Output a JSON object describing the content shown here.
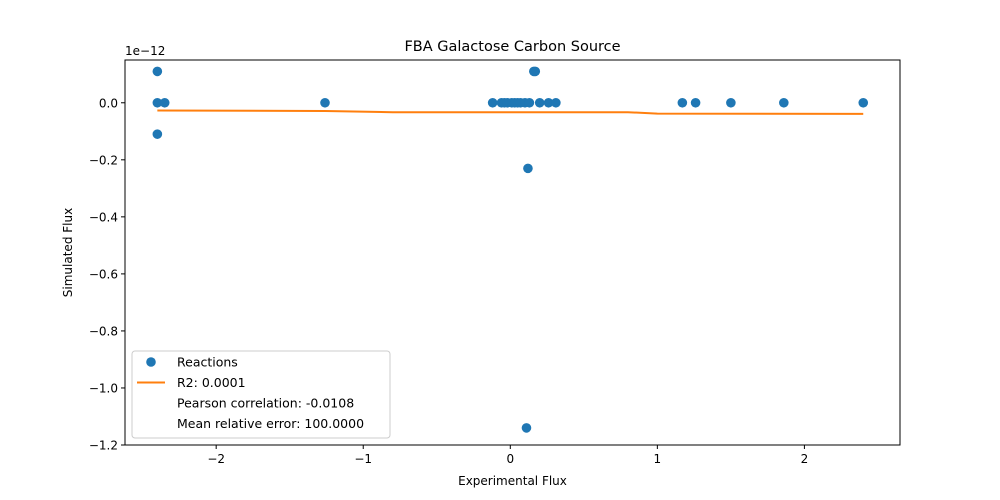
{
  "chart_data": {
    "type": "scatter",
    "title": "FBA Galactose Carbon Source",
    "xlabel": "Experimental Flux",
    "ylabel": "Simulated Flux",
    "y_offset_label": "1e−12",
    "xlim": [
      -2.62,
      2.65
    ],
    "ylim": [
      -1.2,
      0.15
    ],
    "x_ticks": [
      -2,
      -1,
      0,
      1,
      2
    ],
    "x_tick_labels": [
      "−2",
      "−1",
      "0",
      "1",
      "2"
    ],
    "y_ticks": [
      -1.2,
      -1.0,
      -0.8,
      -0.6,
      -0.4,
      -0.2,
      0.0
    ],
    "y_tick_labels": [
      "−1.2",
      "−1.0",
      "−0.8",
      "−0.6",
      "−0.4",
      "−0.2",
      "0.0"
    ],
    "grid": false,
    "legend_position": "lower-left",
    "series": [
      {
        "name": "Reactions",
        "kind": "scatter",
        "color": "#1f77b4",
        "points": [
          [
            -2.4,
            0.11
          ],
          [
            -2.4,
            0.0
          ],
          [
            -2.35,
            0.0
          ],
          [
            -2.4,
            -0.11
          ],
          [
            -1.26,
            0.0
          ],
          [
            -0.12,
            0.0
          ],
          [
            -0.06,
            0.0
          ],
          [
            -0.04,
            0.0
          ],
          [
            -0.02,
            0.0
          ],
          [
            0.01,
            0.0
          ],
          [
            0.03,
            0.0
          ],
          [
            0.05,
            0.0
          ],
          [
            0.07,
            0.0
          ],
          [
            0.1,
            0.0
          ],
          [
            0.13,
            0.0
          ],
          [
            0.2,
            0.0
          ],
          [
            0.26,
            0.0
          ],
          [
            0.31,
            0.0
          ],
          [
            0.17,
            0.11
          ],
          [
            0.16,
            0.11
          ],
          [
            0.12,
            -0.23
          ],
          [
            0.11,
            -1.14
          ],
          [
            1.17,
            0.0
          ],
          [
            1.26,
            0.0
          ],
          [
            1.5,
            0.0
          ],
          [
            1.86,
            0.0
          ],
          [
            2.4,
            0.0
          ]
        ]
      },
      {
        "name": "R2: 0.0001",
        "kind": "line",
        "color": "#ff7f0e",
        "points": [
          [
            -2.4,
            -0.027
          ],
          [
            -1.26,
            -0.029
          ],
          [
            -0.8,
            -0.033
          ],
          [
            0.0,
            -0.033
          ],
          [
            0.8,
            -0.033
          ],
          [
            1.0,
            -0.038
          ],
          [
            2.4,
            -0.039
          ]
        ]
      }
    ],
    "legend": {
      "entries": [
        {
          "label": "Reactions",
          "marker": "circle",
          "color": "#1f77b4"
        },
        {
          "label": "R2: 0.0001",
          "marker": "line",
          "color": "#ff7f0e"
        },
        {
          "label": "Pearson correlation: -0.0108",
          "marker": "none",
          "color": ""
        },
        {
          "label": "Mean relative error: 100.0000",
          "marker": "none",
          "color": ""
        }
      ]
    }
  }
}
